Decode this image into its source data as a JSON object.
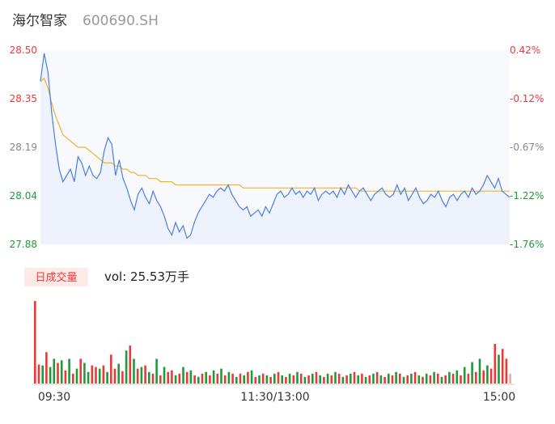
{
  "header": {
    "name": "海尔智家",
    "code": "600690.SH"
  },
  "colors": {
    "up": "#e83a3a",
    "down": "#1f9a3a",
    "price_line": "#4a7fe0",
    "avg_line": "#f0b429",
    "flat": "#888888",
    "badge_bg": "#fde9e6",
    "badge_text": "#e83a3a"
  },
  "price_axis": {
    "ticks": [
      "28.50",
      "28.35",
      "28.19",
      "28.04",
      "27.88"
    ],
    "tick_colors": [
      "up",
      "up",
      "flat",
      "down",
      "down"
    ],
    "pct_ticks": [
      "0.42%",
      "-0.12%",
      "-0.67%",
      "-1.22%",
      "-1.76%"
    ],
    "pct_colors": [
      "up",
      "up",
      "flat",
      "down",
      "down"
    ]
  },
  "volume_panel": {
    "badge": "日成交量",
    "vol_text": "vol: 25.53万手"
  },
  "time_axis": {
    "labels": [
      "09:30",
      "11:30/13:00",
      "15:00"
    ]
  },
  "chart_data": {
    "type": "line",
    "ylim": [
      27.88,
      28.5
    ],
    "price": [
      28.4,
      28.49,
      28.43,
      28.3,
      28.2,
      28.12,
      28.08,
      28.1,
      28.12,
      28.08,
      28.16,
      28.14,
      28.1,
      28.13,
      28.1,
      28.09,
      28.11,
      28.18,
      28.22,
      28.2,
      28.1,
      28.15,
      28.09,
      28.06,
      28.02,
      27.99,
      28.04,
      28.06,
      28.03,
      28.01,
      28.05,
      28.02,
      28.0,
      27.97,
      27.93,
      27.91,
      27.95,
      27.92,
      27.94,
      27.9,
      27.91,
      27.95,
      27.98,
      28.0,
      28.02,
      28.04,
      28.03,
      28.05,
      28.06,
      28.05,
      28.07,
      28.04,
      28.02,
      28.0,
      27.99,
      28.0,
      27.97,
      27.98,
      27.99,
      27.97,
      28.0,
      27.98,
      28.01,
      28.04,
      28.05,
      28.03,
      28.04,
      28.06,
      28.04,
      28.05,
      28.03,
      28.05,
      28.04,
      28.06,
      28.02,
      28.04,
      28.05,
      28.04,
      28.05,
      28.03,
      28.06,
      28.04,
      28.07,
      28.05,
      28.03,
      28.05,
      28.06,
      28.04,
      28.02,
      28.04,
      28.05,
      28.06,
      28.04,
      28.03,
      28.04,
      28.07,
      28.04,
      28.06,
      28.02,
      28.04,
      28.06,
      28.03,
      28.01,
      28.02,
      28.04,
      28.03,
      28.05,
      28.02,
      28.0,
      28.03,
      28.04,
      28.02,
      28.04,
      28.05,
      28.03,
      28.06,
      28.04,
      28.05,
      28.07,
      28.1,
      28.08,
      28.06,
      28.09,
      28.05,
      28.04,
      28.03
    ],
    "avg": [
      28.4,
      28.41,
      28.38,
      28.33,
      28.29,
      28.26,
      28.23,
      28.22,
      28.21,
      28.2,
      28.19,
      28.19,
      28.19,
      28.18,
      28.17,
      28.16,
      28.15,
      28.14,
      28.14,
      28.14,
      28.13,
      28.13,
      28.12,
      28.12,
      28.11,
      28.11,
      28.1,
      28.1,
      28.1,
      28.09,
      28.09,
      28.09,
      28.08,
      28.08,
      28.08,
      28.08,
      28.07,
      28.07,
      28.07,
      28.07,
      28.07,
      28.07,
      28.07,
      28.07,
      28.07,
      28.07,
      28.07,
      28.07,
      28.07,
      28.07,
      28.07,
      28.07,
      28.07,
      28.07,
      28.06,
      28.06,
      28.06,
      28.06,
      28.06,
      28.06,
      28.06,
      28.06,
      28.06,
      28.06,
      28.06,
      28.06,
      28.06,
      28.06,
      28.06,
      28.06,
      28.06,
      28.06,
      28.06,
      28.06,
      28.06,
      28.06,
      28.06,
      28.06,
      28.06,
      28.06,
      28.06,
      28.06,
      28.06,
      28.06,
      28.06,
      28.05,
      28.05,
      28.05,
      28.05,
      28.05,
      28.05,
      28.05,
      28.05,
      28.05,
      28.05,
      28.05,
      28.05,
      28.05,
      28.05,
      28.05,
      28.05,
      28.05,
      28.05,
      28.05,
      28.05,
      28.05,
      28.05,
      28.05,
      28.05,
      28.05,
      28.05,
      28.05,
      28.05,
      28.05,
      28.05,
      28.05,
      28.05,
      28.05,
      28.05,
      28.05,
      28.05,
      28.05,
      28.05,
      28.05,
      28.05,
      28.05
    ],
    "volume": [
      100,
      23,
      22,
      38,
      20,
      30,
      25,
      28,
      16,
      30,
      12,
      18,
      30,
      25,
      14,
      22,
      20,
      18,
      22,
      14,
      35,
      18,
      24,
      15,
      40,
      46,
      30,
      18,
      20,
      22,
      14,
      12,
      30,
      10,
      20,
      14,
      16,
      10,
      12,
      20,
      14,
      16,
      10,
      8,
      12,
      14,
      10,
      16,
      12,
      18,
      10,
      14,
      12,
      8,
      12,
      10,
      14,
      16,
      8,
      10,
      12,
      10,
      8,
      12,
      14,
      10,
      8,
      12,
      10,
      14,
      12,
      8,
      10,
      12,
      14,
      10,
      8,
      12,
      10,
      14,
      12,
      8,
      10,
      12,
      14,
      10,
      12,
      8,
      10,
      12,
      14,
      10,
      8,
      12,
      10,
      14,
      12,
      8,
      10,
      12,
      14,
      10,
      8,
      12,
      10,
      14,
      12,
      8,
      10,
      14,
      12,
      16,
      10,
      20,
      12,
      26,
      14,
      30,
      16,
      22,
      18,
      48,
      35,
      42,
      30,
      12
    ],
    "vol_color": [
      "up",
      "up",
      "down",
      "up",
      "down",
      "down",
      "up",
      "down",
      "up",
      "down",
      "up",
      "down",
      "up",
      "down",
      "down",
      "up",
      "up",
      "down",
      "up",
      "down",
      "up",
      "up",
      "down",
      "up",
      "down",
      "up",
      "down",
      "up",
      "down",
      "up",
      "down",
      "up",
      "down",
      "up",
      "down",
      "up",
      "up",
      "down",
      "up",
      "down",
      "up",
      "down",
      "up",
      "down",
      "up",
      "down",
      "up",
      "down",
      "up",
      "down",
      "up",
      "down",
      "up",
      "down",
      "up",
      "down",
      "up",
      "down",
      "up",
      "down",
      "up",
      "down",
      "up",
      "down",
      "up",
      "down",
      "up",
      "down",
      "up",
      "down",
      "up",
      "down",
      "up",
      "down",
      "up",
      "down",
      "up",
      "down",
      "up",
      "down",
      "up",
      "down",
      "up",
      "down",
      "up",
      "down",
      "up",
      "down",
      "up",
      "down",
      "up",
      "down",
      "up",
      "down",
      "up",
      "down",
      "up",
      "down",
      "up",
      "down",
      "up",
      "down",
      "up",
      "down",
      "up",
      "down",
      "up",
      "down",
      "up",
      "down",
      "up",
      "down",
      "up",
      "down",
      "up",
      "down",
      "up",
      "down",
      "up",
      "down",
      "up",
      "up",
      "down",
      "up",
      "up",
      "flat"
    ]
  }
}
